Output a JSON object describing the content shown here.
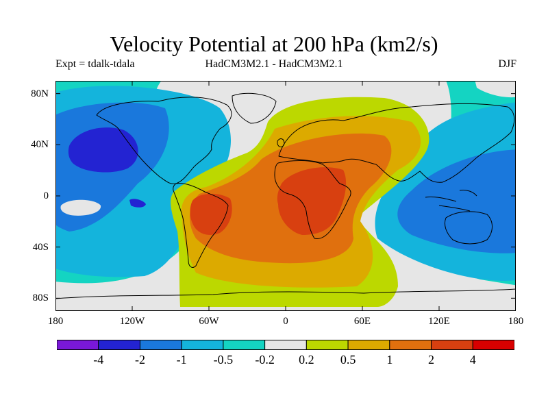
{
  "figure": {
    "title": "Velocity Potential at 200 hPa (km2/s)",
    "left_label": "Expt = tdalk-tdala",
    "center_label": "HadCM3M2.1 - HadCM3M2.1",
    "right_label": "DJF"
  },
  "axes": {
    "x_range": [
      -180,
      180
    ],
    "y_range": [
      -90,
      90
    ],
    "x_ticks": [
      {
        "value": -180,
        "label": "180"
      },
      {
        "value": -120,
        "label": "120W"
      },
      {
        "value": -60,
        "label": "60W"
      },
      {
        "value": 0,
        "label": "0"
      },
      {
        "value": 60,
        "label": "60E"
      },
      {
        "value": 120,
        "label": "120E"
      },
      {
        "value": 180,
        "label": "180"
      }
    ],
    "y_ticks": [
      {
        "value": 80,
        "label": "80N"
      },
      {
        "value": 40,
        "label": "40N"
      },
      {
        "value": 0,
        "label": "0"
      },
      {
        "value": -40,
        "label": "40S"
      },
      {
        "value": -80,
        "label": "80S"
      }
    ]
  },
  "colorbar": {
    "colors": [
      "#7a18d8",
      "#2323d2",
      "#1a78dc",
      "#14b4dc",
      "#14d4c2",
      "#e6e6e6",
      "#bcd800",
      "#dcaa00",
      "#e0700e",
      "#d84010",
      "#d80000"
    ],
    "labels": [
      "-4",
      "-2",
      "-1",
      "-0.5",
      "-0.2",
      "0.2",
      "0.5",
      "1",
      "2",
      "4"
    ]
  },
  "colors": {
    "neutral": "#e6e6e6",
    "background_cyan": "#14d4c2"
  }
}
